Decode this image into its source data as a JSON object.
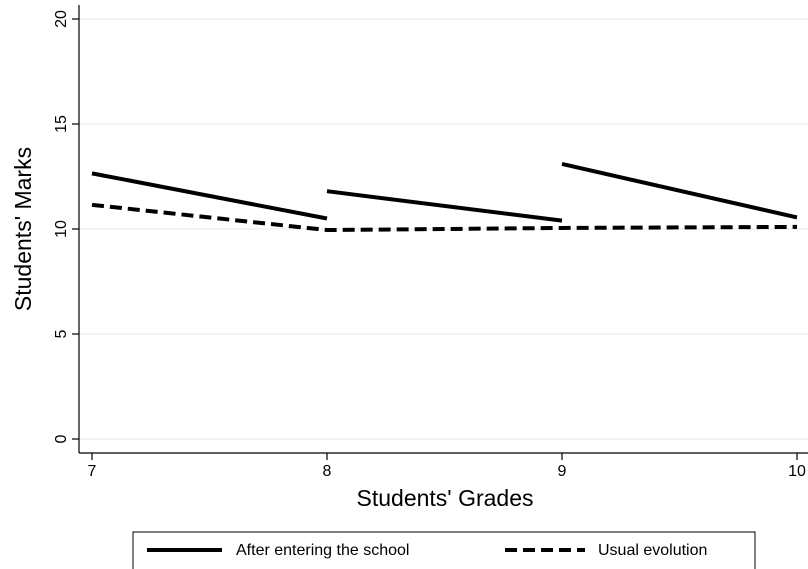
{
  "chart_data": {
    "type": "line",
    "x_label": "Students' Grades",
    "y_label": "Students' Marks",
    "xlim": [
      7,
      10
    ],
    "ylim": [
      0,
      20
    ],
    "xticks": [
      7,
      8,
      9,
      10
    ],
    "yticks": [
      0,
      5,
      10,
      15,
      20
    ],
    "grid": true,
    "series": [
      {
        "name": "After entering the school",
        "color": "#000000",
        "dash": "solid",
        "x": [
          7,
          8,
          null,
          8,
          9,
          null,
          9,
          10
        ],
        "values": [
          12.65,
          10.5,
          null,
          11.8,
          10.4,
          null,
          13.1,
          10.55
        ]
      },
      {
        "name": "Usual evolution",
        "color": "#000000",
        "dash": "dashed",
        "x": [
          7,
          8,
          9,
          10
        ],
        "values": [
          11.15,
          9.95,
          10.05,
          10.1
        ]
      }
    ]
  }
}
